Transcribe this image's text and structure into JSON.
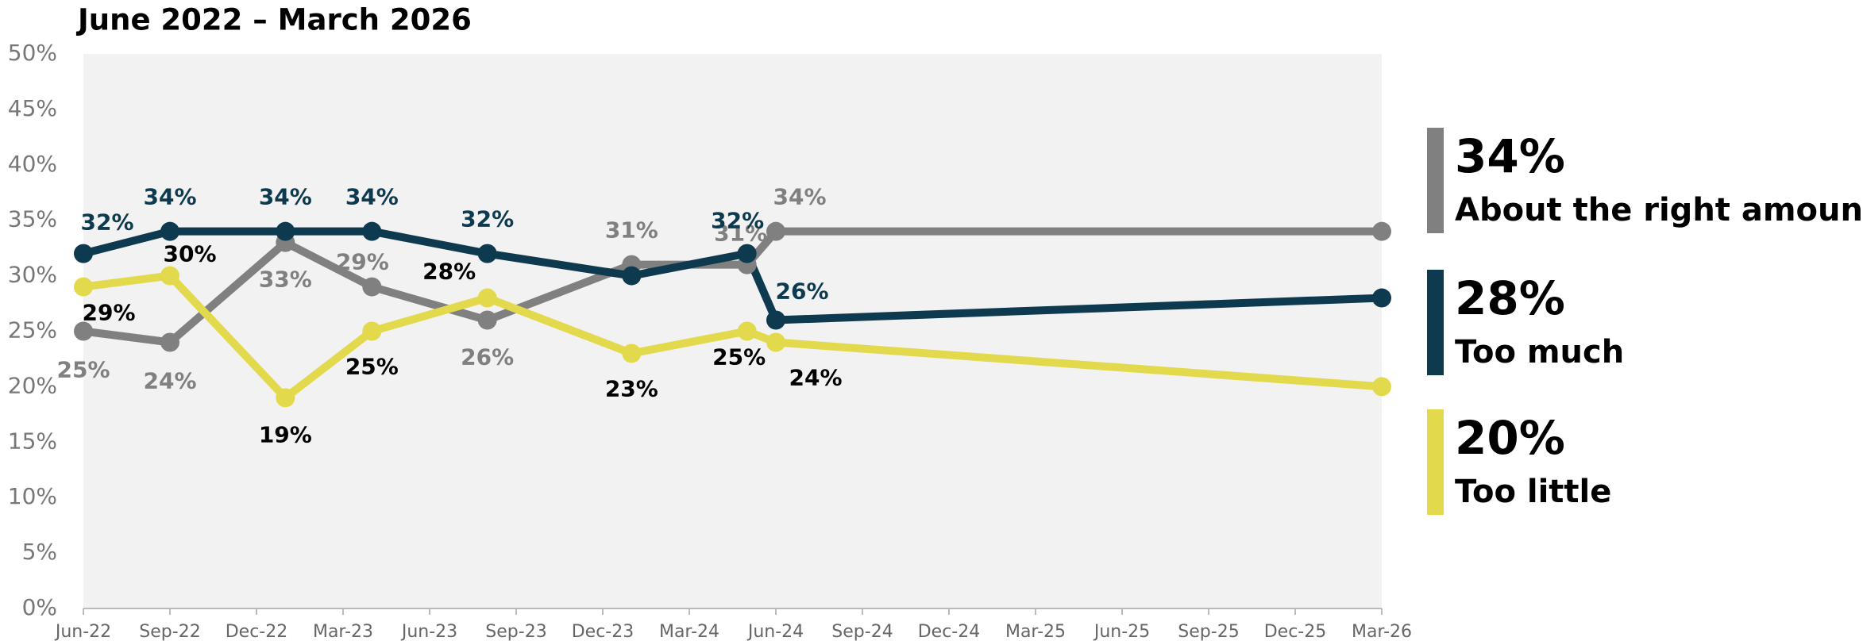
{
  "chart_data": {
    "type": "line",
    "title": "June 2022 – March 2026",
    "x": [
      "2022-06",
      "2022-09",
      "2023-01",
      "2023-04",
      "2023-08",
      "2024-01",
      "2024-05",
      "2024-06",
      "2026-03"
    ],
    "series": [
      {
        "name": "About the right amount",
        "color": "#808080",
        "values": [
          25,
          24,
          33,
          29,
          26,
          31,
          31,
          34,
          34
        ],
        "value_labels": [
          "25%",
          "24%",
          "33%",
          "29%",
          "26%",
          "31%",
          "31%",
          "34%",
          "34%"
        ]
      },
      {
        "name": "Too much",
        "color": "#0e3a50",
        "values": [
          32,
          34,
          34,
          34,
          32,
          30,
          32,
          26,
          28
        ],
        "value_labels": [
          "32%",
          "34%",
          "34%",
          "34%",
          "32%",
          null,
          "32%",
          "26%",
          "28%"
        ]
      },
      {
        "name": "Too little",
        "color": "#e3d94c",
        "values": [
          29,
          30,
          19,
          25,
          28,
          23,
          25,
          24,
          20
        ],
        "value_labels": [
          "29%",
          "30%",
          "19%",
          "25%",
          "28%",
          "23%",
          "25%",
          "24%",
          "20%"
        ]
      }
    ],
    "xlim": [
      "2022-06",
      "2026-03"
    ],
    "xticks": [
      {
        "value": "2022-06",
        "label": "Jun-22"
      },
      {
        "value": "2022-09",
        "label": "Sep-22"
      },
      {
        "value": "2022-12",
        "label": "Dec-22"
      },
      {
        "value": "2023-03",
        "label": "Mar-23"
      },
      {
        "value": "2023-06",
        "label": "Jun-23"
      },
      {
        "value": "2023-09",
        "label": "Sep-23"
      },
      {
        "value": "2023-12",
        "label": "Dec-23"
      },
      {
        "value": "2024-03",
        "label": "Mar-24"
      },
      {
        "value": "2024-06",
        "label": "Jun-24"
      },
      {
        "value": "2024-09",
        "label": "Sep-24"
      },
      {
        "value": "2024-12",
        "label": "Dec-24"
      },
      {
        "value": "2025-03",
        "label": "Mar-25"
      },
      {
        "value": "2025-06",
        "label": "Jun-25"
      },
      {
        "value": "2025-09",
        "label": "Sep-25"
      },
      {
        "value": "2025-12",
        "label": "Dec-25"
      },
      {
        "value": "2026-03",
        "label": "Mar-26"
      }
    ],
    "ylim": [
      0,
      50
    ],
    "yticks": [
      {
        "value": 0,
        "label": "0%"
      },
      {
        "value": 5,
        "label": "5%"
      },
      {
        "value": 10,
        "label": "10%"
      },
      {
        "value": 15,
        "label": "15%"
      },
      {
        "value": 20,
        "label": "20%"
      },
      {
        "value": 25,
        "label": "25%"
      },
      {
        "value": 30,
        "label": "30%"
      },
      {
        "value": 35,
        "label": "35%"
      },
      {
        "value": 40,
        "label": "40%"
      },
      {
        "value": 45,
        "label": "45%"
      },
      {
        "value": 50,
        "label": "50%"
      }
    ],
    "legend": "right"
  }
}
